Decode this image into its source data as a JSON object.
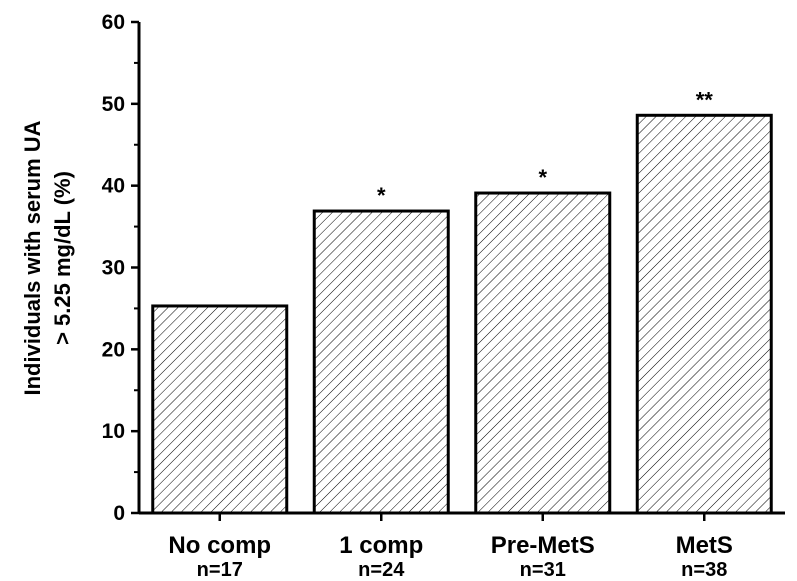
{
  "chart_data": {
    "type": "bar",
    "categories": [
      "No comp",
      "1 comp",
      "Pre-MetS",
      "MetS"
    ],
    "sample_sizes": [
      "n=17",
      "n=24",
      "n=31",
      "n=38"
    ],
    "values": [
      25.3,
      36.9,
      39.1,
      48.6
    ],
    "significance": [
      "",
      "*",
      "*",
      "**"
    ],
    "ylabel_lines": [
      "Individuals with serum UA",
      "> 5.25 mg/dL (%)"
    ],
    "ylim": [
      0,
      60
    ],
    "yticks": [
      0,
      10,
      20,
      30,
      40,
      50,
      60
    ],
    "grid": false,
    "bar_fill": "hatched-diagonal",
    "bar_color": "#000000"
  }
}
